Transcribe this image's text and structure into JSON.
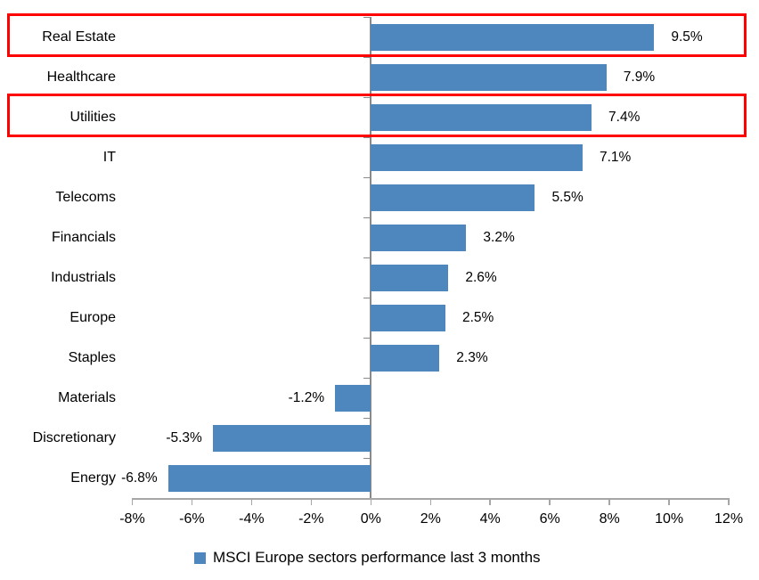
{
  "chart_data": {
    "type": "bar",
    "orientation": "horizontal",
    "title": "",
    "categories": [
      "Real Estate",
      "Healthcare",
      "Utilities",
      "IT",
      "Telecoms",
      "Financials",
      "Industrials",
      "Europe",
      "Staples",
      "Materials",
      "Discretionary",
      "Energy"
    ],
    "values": [
      9.5,
      7.9,
      7.4,
      7.1,
      5.5,
      3.2,
      2.6,
      2.5,
      2.3,
      -1.2,
      -5.3,
      -6.8
    ],
    "value_labels": [
      "9.5%",
      "7.9%",
      "7.4%",
      "7.1%",
      "5.5%",
      "3.2%",
      "2.6%",
      "2.5%",
      "2.3%",
      "-1.2%",
      "-5.3%",
      "-6.8%"
    ],
    "xlim": [
      -8,
      12
    ],
    "x_tick_values": [
      -8,
      -6,
      -4,
      -2,
      0,
      2,
      4,
      6,
      8,
      10,
      12
    ],
    "x_tick_labels": [
      "-8%",
      "-6%",
      "-4%",
      "-2%",
      "0%",
      "2%",
      "4%",
      "6%",
      "8%",
      "10%",
      "12%"
    ],
    "grid": false,
    "legend_position": "bottom",
    "legend": [
      {
        "label": "MSCI Europe sectors performance last 3 months",
        "color": "#4E86BE"
      }
    ],
    "highlighted_categories": [
      "Real Estate",
      "Utilities"
    ],
    "highlight_rows": [
      0,
      2
    ]
  },
  "colors": {
    "bar": "#4E86BE",
    "highlight_border": "#FF0000",
    "value_axis": "#A6A6A6",
    "category_axis": "#8A8A8A",
    "text": "#000000",
    "background": "#FFFFFF"
  }
}
